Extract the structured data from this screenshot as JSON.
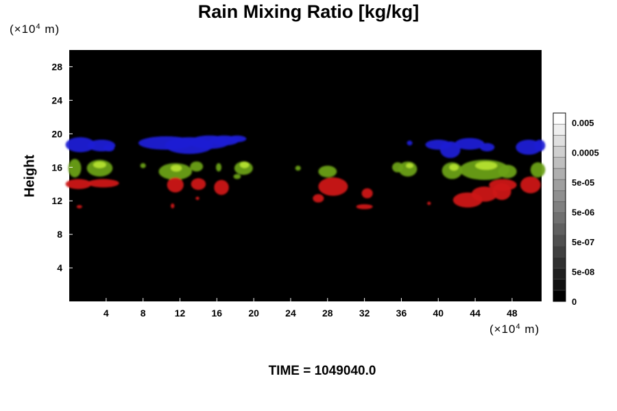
{
  "chart_data": {
    "type": "heatmap",
    "title": "Rain Mixing Ratio [kg/kg]",
    "ylabel": "Height",
    "y_unit": {
      "prefix": "(×10",
      "exponent": "4",
      "suffix": " m)"
    },
    "x_unit": {
      "prefix": "(×10",
      "exponent": "4",
      "suffix": " m)"
    },
    "xlim": [
      0,
      51.2
    ],
    "ylim": [
      0,
      30
    ],
    "x_ticks": [
      4,
      8,
      12,
      16,
      20,
      24,
      28,
      32,
      36,
      40,
      44,
      48
    ],
    "y_ticks": [
      4,
      8,
      12,
      16,
      20,
      24,
      28
    ],
    "colorbar": {
      "labels": [
        "0.005",
        "0.0005",
        "5e-05",
        "5e-06",
        "5e-07",
        "5e-08",
        "0"
      ],
      "levels": 17
    },
    "layers": [
      {
        "color": "#1a1ad4",
        "blobs": [
          [
            1.2,
            18.7,
            1.6,
            0.9
          ],
          [
            3.5,
            18.6,
            1.5,
            0.7
          ],
          [
            4.3,
            18.3,
            0.6,
            0.4
          ],
          [
            10.5,
            18.9,
            3.0,
            0.8
          ],
          [
            13.0,
            18.6,
            2.6,
            1.0
          ],
          [
            15.2,
            19.0,
            2.2,
            0.8
          ],
          [
            16.8,
            19.2,
            1.6,
            0.6
          ],
          [
            18.2,
            19.4,
            1.0,
            0.4
          ],
          [
            40.0,
            18.7,
            1.4,
            0.6
          ],
          [
            41.3,
            18.1,
            1.1,
            1.0
          ],
          [
            43.4,
            18.8,
            1.6,
            0.7
          ],
          [
            45.3,
            18.4,
            0.8,
            0.5
          ],
          [
            49.8,
            18.4,
            1.4,
            0.9
          ],
          [
            51.0,
            18.6,
            0.6,
            0.7
          ],
          [
            36.9,
            18.9,
            0.3,
            0.3
          ]
        ]
      },
      {
        "color": "#6aa014",
        "blobs": [
          [
            0.6,
            15.9,
            0.7,
            1.1
          ],
          [
            3.3,
            15.9,
            1.4,
            1.0
          ],
          [
            11.5,
            15.5,
            1.8,
            1.0
          ],
          [
            13.8,
            16.1,
            0.7,
            0.6
          ],
          [
            16.2,
            16.0,
            0.3,
            0.5
          ],
          [
            18.9,
            15.9,
            1.0,
            0.8
          ],
          [
            28.0,
            15.5,
            1.0,
            0.7
          ],
          [
            36.7,
            15.8,
            1.0,
            0.9
          ],
          [
            35.6,
            16.0,
            0.6,
            0.6
          ],
          [
            41.5,
            15.6,
            1.1,
            1.0
          ],
          [
            45.0,
            15.7,
            2.7,
            1.2
          ],
          [
            47.5,
            15.5,
            1.0,
            0.8
          ],
          [
            50.8,
            15.7,
            0.8,
            0.9
          ],
          [
            8.0,
            16.2,
            0.3,
            0.3
          ],
          [
            18.2,
            14.9,
            0.4,
            0.3
          ],
          [
            24.8,
            15.9,
            0.3,
            0.3
          ]
        ]
      },
      {
        "color": "#cc1414",
        "blobs": [
          [
            1.0,
            14.0,
            1.4,
            0.6
          ],
          [
            3.7,
            14.1,
            1.7,
            0.5
          ],
          [
            11.5,
            13.9,
            0.9,
            0.9
          ],
          [
            14.0,
            14.0,
            0.8,
            0.7
          ],
          [
            16.5,
            13.6,
            0.8,
            0.9
          ],
          [
            28.6,
            13.7,
            1.6,
            1.1
          ],
          [
            27.0,
            12.3,
            0.6,
            0.5
          ],
          [
            32.3,
            12.9,
            0.6,
            0.6
          ],
          [
            32.0,
            11.3,
            0.9,
            0.3
          ],
          [
            43.2,
            12.1,
            1.6,
            0.9
          ],
          [
            45.0,
            12.8,
            1.4,
            0.9
          ],
          [
            46.9,
            13.1,
            1.0,
            1.0
          ],
          [
            50.0,
            13.9,
            1.1,
            1.0
          ],
          [
            47.0,
            13.9,
            1.5,
            0.7
          ],
          [
            11.2,
            11.4,
            0.2,
            0.3
          ],
          [
            13.9,
            12.3,
            0.2,
            0.2
          ],
          [
            1.1,
            11.3,
            0.3,
            0.2
          ],
          [
            39.0,
            11.7,
            0.2,
            0.2
          ]
        ]
      },
      {
        "color": "#b4e030",
        "blobs": [
          [
            3.3,
            16.3,
            0.7,
            0.4
          ],
          [
            11.6,
            15.9,
            0.6,
            0.4
          ],
          [
            19.0,
            16.3,
            0.5,
            0.4
          ],
          [
            45.2,
            16.2,
            1.2,
            0.5
          ],
          [
            41.7,
            16.0,
            0.5,
            0.4
          ],
          [
            36.9,
            16.2,
            0.4,
            0.3
          ]
        ]
      }
    ]
  },
  "time": {
    "label": "TIME =",
    "value": "1049040.0"
  }
}
